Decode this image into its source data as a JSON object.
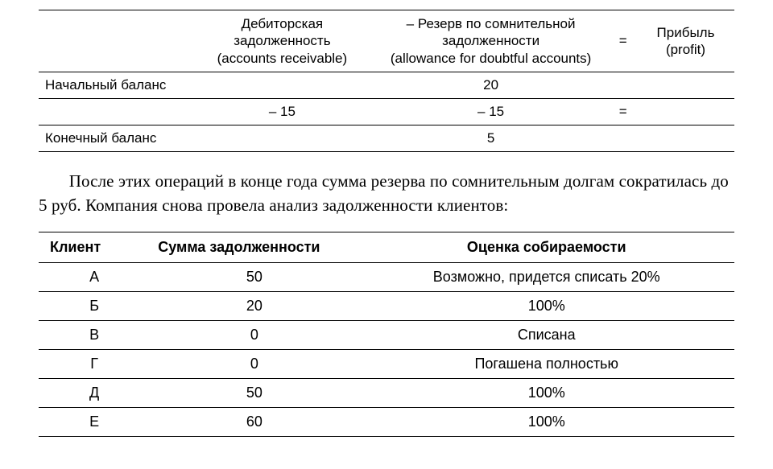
{
  "balance_table": {
    "headers": {
      "col0": "",
      "col1_line1": "Дебиторская задолженность",
      "col1_line2": "(accounts receivable)",
      "col2_line1": "– Резерв по сомнительной",
      "col2_line2": "задолженности",
      "col2_line3": "(allowance for doubtful accounts)",
      "eq": "=",
      "col4": "Прибыль (profit)"
    },
    "rows": [
      {
        "label": "Начальный баланс",
        "col1": "",
        "col2": "20",
        "eq": "",
        "col4": ""
      },
      {
        "label": "",
        "col1": "– 15",
        "col2": "– 15",
        "eq": "=",
        "col4": ""
      },
      {
        "label": "Конечный баланс",
        "col1": "",
        "col2": "5",
        "eq": "",
        "col4": ""
      }
    ]
  },
  "paragraph": "После этих операций в конце года сумма резерва по сомнительным долгам со­кратилась до 5 руб. Компания снова провела анализ задолженности клиентов:",
  "clients_table": {
    "headers": {
      "client": "Клиент",
      "amount": "Сумма задолженности",
      "assessment": "Оценка собираемости"
    },
    "rows": [
      {
        "client": "А",
        "amount": "50",
        "assessment": "Возможно, придется списать 20%"
      },
      {
        "client": "Б",
        "amount": "20",
        "assessment": "100%"
      },
      {
        "client": "В",
        "amount": "0",
        "assessment": "Списана"
      },
      {
        "client": "Г",
        "amount": "0",
        "assessment": "Погашена полностью"
      },
      {
        "client": "Д",
        "amount": "50",
        "assessment": "100%"
      },
      {
        "client": "Е",
        "amount": "60",
        "assessment": "100%"
      }
    ]
  }
}
